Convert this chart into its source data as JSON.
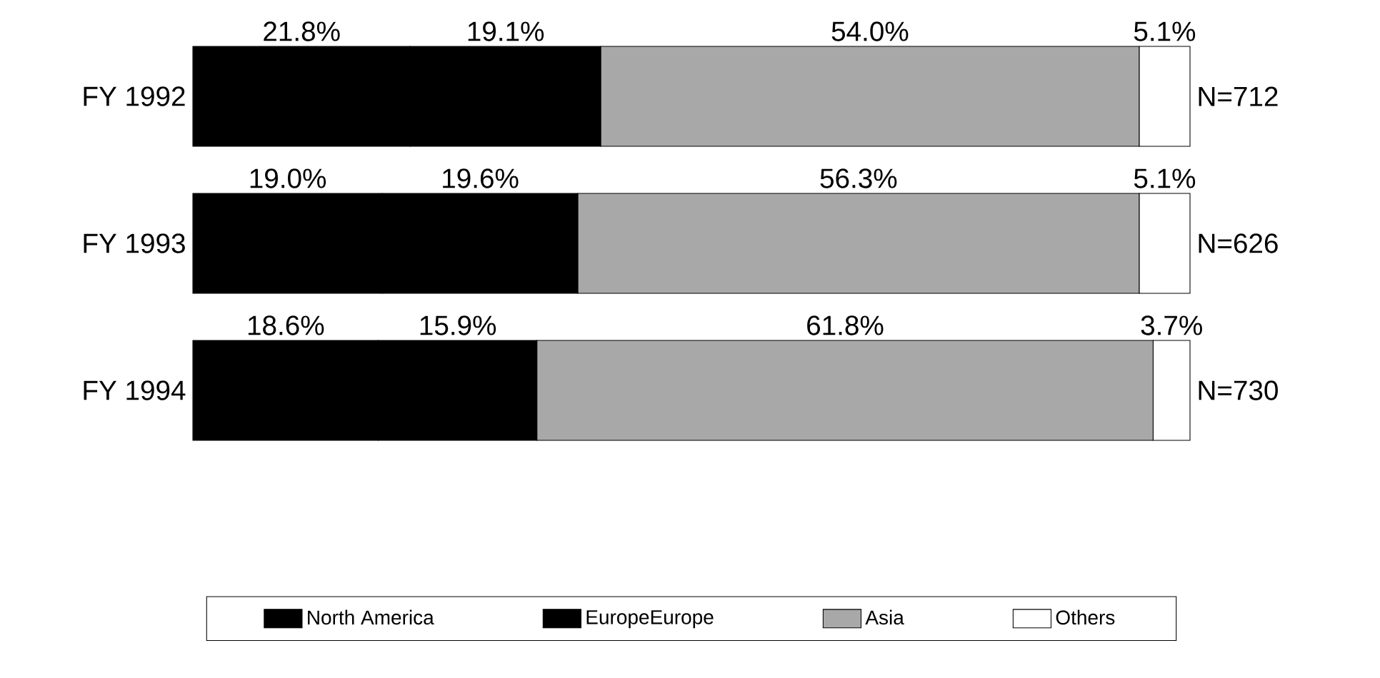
{
  "chart_data": {
    "type": "bar",
    "orientation": "horizontal",
    "stacked": true,
    "categories": [
      "FY 1992",
      "FY 1993",
      "FY 1994"
    ],
    "series": [
      {
        "name": "North America",
        "color": "#000000",
        "values": [
          21.8,
          19.0,
          18.6
        ],
        "value_labels": [
          "21.8%",
          "19.0%",
          "18.6%"
        ]
      },
      {
        "name": "EuropeEurope",
        "color": "#000000",
        "values": [
          19.1,
          19.6,
          15.9
        ],
        "value_labels": [
          "19.1%",
          "19.6%",
          "15.9%"
        ]
      },
      {
        "name": "Asia",
        "color": "#a8a8a8",
        "values": [
          54.0,
          56.3,
          61.8
        ],
        "value_labels": [
          "54.0%",
          "56.3%",
          "61.8%"
        ]
      },
      {
        "name": "Others",
        "color": "#ffffff",
        "values": [
          5.1,
          5.1,
          3.7
        ],
        "value_labels": [
          "5.1%",
          "5.1%",
          "3.7%"
        ]
      }
    ],
    "annotations": [
      "N=712",
      "N=626",
      "N=730"
    ],
    "legend": "bottom"
  }
}
